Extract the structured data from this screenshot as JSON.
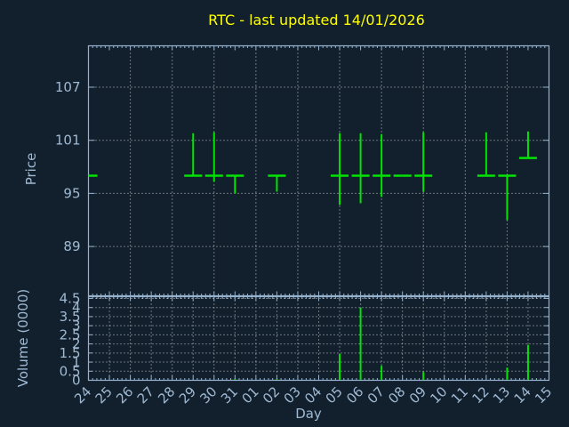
{
  "title": "RTC - last updated 14/01/2026",
  "colors": {
    "background": "#12202e",
    "axis": "#96b2cc",
    "grid": "#c8c8c8",
    "labels": "#a0b9d2",
    "title": "#ffff00",
    "bars": "#00e400"
  },
  "price_panel": {
    "axis_label": "Price",
    "ytick_labels": [
      "107",
      "101",
      "95",
      "89"
    ]
  },
  "volume_panel": {
    "axis_label": "Volume (0000)",
    "ytick_labels": [
      "4.5",
      "4",
      "3.5",
      "3",
      "2.5",
      "2",
      "1.5",
      "1",
      "0.5",
      "0"
    ]
  },
  "x_axis": {
    "axis_label": "Day",
    "tick_labels": [
      "24",
      "25",
      "26",
      "27",
      "28",
      "29",
      "30",
      "31",
      "01",
      "02",
      "03",
      "04",
      "05",
      "06",
      "07",
      "08",
      "09",
      "10",
      "11",
      "12",
      "13",
      "14",
      "15"
    ]
  },
  "chart_data": {
    "type": "ohlc+volume",
    "title": "RTC - last updated 14/01/2026",
    "xlabel": "Day",
    "price_ylabel": "Price",
    "volume_ylabel": "Volume (0000)",
    "price_yticks": [
      107,
      101,
      95,
      89
    ],
    "volume_yticks": [
      4.5,
      4,
      3.5,
      3,
      2.5,
      2,
      1.5,
      1,
      0.5,
      0
    ],
    "x_categories": [
      "24",
      "25",
      "26",
      "27",
      "28",
      "29",
      "30",
      "31",
      "01",
      "02",
      "03",
      "04",
      "05",
      "06",
      "07",
      "08",
      "09",
      "10",
      "11",
      "12",
      "13",
      "14",
      "15"
    ],
    "grid": "dotted, price-grid every 2 days, volume-grid every day",
    "series": [
      {
        "name": "price-ohlc",
        "style": "financebars",
        "points": [
          {
            "day": "24",
            "open": null,
            "high": 97,
            "low": 97,
            "close": 97
          },
          {
            "day": "29",
            "open": 97,
            "high": 101.8,
            "low": 97,
            "close": 97
          },
          {
            "day": "30",
            "open": 97,
            "high": 101.9,
            "low": 96.3,
            "close": 97
          },
          {
            "day": "31",
            "open": 97,
            "high": 97,
            "low": 95,
            "close": 97
          },
          {
            "day": "02",
            "open": 97,
            "high": 97,
            "low": 95.2,
            "close": 97
          },
          {
            "day": "05",
            "open": 97,
            "high": 101.8,
            "low": 93.7,
            "close": 97
          },
          {
            "day": "06",
            "open": 97,
            "high": 101.8,
            "low": 93.9,
            "close": 97
          },
          {
            "day": "07",
            "open": 97,
            "high": 101.7,
            "low": 94.6,
            "close": 97
          },
          {
            "day": "08",
            "open": 97,
            "high": 97,
            "low": 97,
            "close": 97
          },
          {
            "day": "09",
            "open": 97,
            "high": 101.9,
            "low": 95.2,
            "close": 97
          },
          {
            "day": "12",
            "open": 97,
            "high": 101.9,
            "low": 97,
            "close": 97
          },
          {
            "day": "13",
            "open": 97,
            "high": 97,
            "low": 92,
            "close": 97
          },
          {
            "day": "14",
            "open": 99,
            "high": 102,
            "low": 99,
            "close": 99
          }
        ]
      },
      {
        "name": "volume",
        "style": "impulses",
        "days": [
          "24",
          "29",
          "30",
          "31",
          "02",
          "05",
          "06",
          "07",
          "08",
          "09",
          "12",
          "13",
          "14"
        ],
        "values": [
          0,
          0,
          0,
          0.07,
          0.07,
          1.45,
          4.0,
          0.8,
          0,
          0.45,
          0,
          0.7,
          1.95
        ]
      }
    ]
  }
}
